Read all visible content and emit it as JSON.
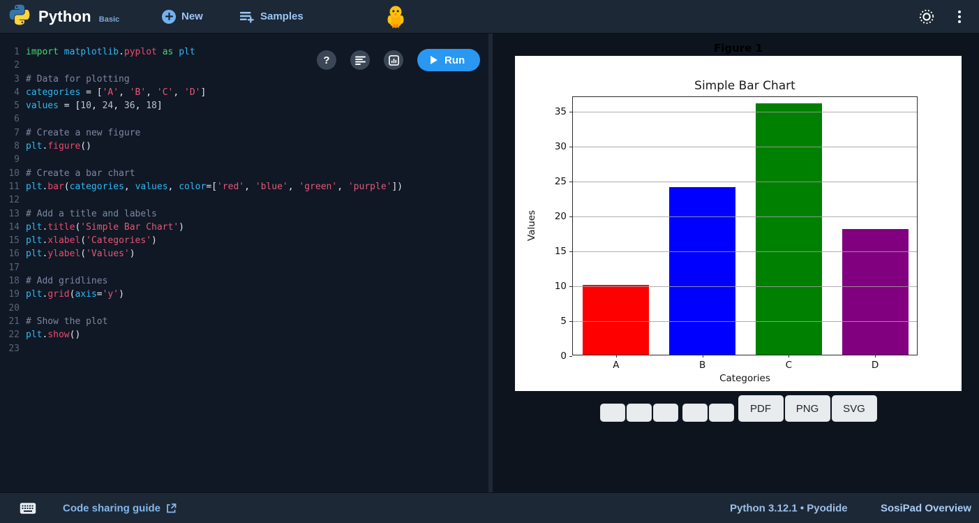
{
  "app": {
    "brand": "Python",
    "brand_variant": "Basic",
    "accent": "#2898f3"
  },
  "topbar": {
    "new_label": "New",
    "samples_label": "Samples",
    "mascot_icon": "chick",
    "theme_icon": "sun",
    "menu_icon": "kebab"
  },
  "editor": {
    "toolbar": {
      "help_label": "?",
      "run_label": "Run"
    },
    "lines": [
      {
        "n": "1",
        "t": [
          [
            "kw",
            "import"
          ],
          [
            "pl",
            " "
          ],
          [
            "id",
            "matplotlib"
          ],
          [
            "pl",
            "."
          ],
          [
            "fn",
            "pyplot"
          ],
          [
            "pl",
            " "
          ],
          [
            "kw",
            "as"
          ],
          [
            "pl",
            " "
          ],
          [
            "id",
            "plt"
          ]
        ]
      },
      {
        "n": "2",
        "t": []
      },
      {
        "n": "3",
        "t": [
          [
            "cmt",
            "# Data for plotting"
          ]
        ]
      },
      {
        "n": "4",
        "t": [
          [
            "id",
            "categories"
          ],
          [
            "pl",
            " = ["
          ],
          [
            "st",
            "'A'"
          ],
          [
            "pl",
            ", "
          ],
          [
            "st",
            "'B'"
          ],
          [
            "pl",
            ", "
          ],
          [
            "st",
            "'C'"
          ],
          [
            "pl",
            ", "
          ],
          [
            "st",
            "'D'"
          ],
          [
            "pl",
            "]"
          ]
        ]
      },
      {
        "n": "5",
        "t": [
          [
            "id",
            "values"
          ],
          [
            "pl",
            " = ["
          ],
          [
            "num",
            "10"
          ],
          [
            "pl",
            ", "
          ],
          [
            "num",
            "24"
          ],
          [
            "pl",
            ", "
          ],
          [
            "num",
            "36"
          ],
          [
            "pl",
            ", "
          ],
          [
            "num",
            "18"
          ],
          [
            "pl",
            "]"
          ]
        ]
      },
      {
        "n": "6",
        "t": []
      },
      {
        "n": "7",
        "t": [
          [
            "cmt",
            "# Create a new figure"
          ]
        ]
      },
      {
        "n": "8",
        "t": [
          [
            "id",
            "plt"
          ],
          [
            "pl",
            "."
          ],
          [
            "fn",
            "figure"
          ],
          [
            "pl",
            "()"
          ]
        ]
      },
      {
        "n": "9",
        "t": []
      },
      {
        "n": "10",
        "t": [
          [
            "cmt",
            "# Create a bar chart"
          ]
        ]
      },
      {
        "n": "11",
        "t": [
          [
            "id",
            "plt"
          ],
          [
            "pl",
            "."
          ],
          [
            "fn",
            "bar"
          ],
          [
            "pl",
            "("
          ],
          [
            "id",
            "categories"
          ],
          [
            "pl",
            ", "
          ],
          [
            "id",
            "values"
          ],
          [
            "pl",
            ", "
          ],
          [
            "id",
            "color"
          ],
          [
            "pl",
            "=["
          ],
          [
            "st",
            "'red'"
          ],
          [
            "pl",
            ", "
          ],
          [
            "st",
            "'blue'"
          ],
          [
            "pl",
            ", "
          ],
          [
            "st",
            "'green'"
          ],
          [
            "pl",
            ", "
          ],
          [
            "st",
            "'purple'"
          ],
          [
            "pl",
            "])"
          ]
        ]
      },
      {
        "n": "12",
        "t": []
      },
      {
        "n": "13",
        "t": [
          [
            "cmt",
            "# Add a title and labels"
          ]
        ]
      },
      {
        "n": "14",
        "t": [
          [
            "id",
            "plt"
          ],
          [
            "pl",
            "."
          ],
          [
            "fn",
            "title"
          ],
          [
            "pl",
            "("
          ],
          [
            "st",
            "'Simple Bar Chart'"
          ],
          [
            "pl",
            ")"
          ]
        ]
      },
      {
        "n": "15",
        "t": [
          [
            "id",
            "plt"
          ],
          [
            "pl",
            "."
          ],
          [
            "fn",
            "xlabel"
          ],
          [
            "pl",
            "("
          ],
          [
            "st",
            "'Categories'"
          ],
          [
            "pl",
            ")"
          ]
        ]
      },
      {
        "n": "16",
        "t": [
          [
            "id",
            "plt"
          ],
          [
            "pl",
            "."
          ],
          [
            "fn",
            "ylabel"
          ],
          [
            "pl",
            "("
          ],
          [
            "st",
            "'Values'"
          ],
          [
            "pl",
            ")"
          ]
        ]
      },
      {
        "n": "17",
        "t": []
      },
      {
        "n": "18",
        "t": [
          [
            "cmt",
            "# Add gridlines"
          ]
        ]
      },
      {
        "n": "19",
        "t": [
          [
            "id",
            "plt"
          ],
          [
            "pl",
            "."
          ],
          [
            "fn",
            "grid"
          ],
          [
            "pl",
            "("
          ],
          [
            "id",
            "axis"
          ],
          [
            "pl",
            "="
          ],
          [
            "st",
            "'y'"
          ],
          [
            "pl",
            ")"
          ]
        ]
      },
      {
        "n": "20",
        "t": []
      },
      {
        "n": "21",
        "t": [
          [
            "cmt",
            "# Show the plot"
          ]
        ]
      },
      {
        "n": "22",
        "t": [
          [
            "id",
            "plt"
          ],
          [
            "pl",
            "."
          ],
          [
            "fn",
            "show"
          ],
          [
            "pl",
            "()"
          ]
        ]
      },
      {
        "n": "23",
        "t": []
      }
    ]
  },
  "chart_data": {
    "type": "bar",
    "window_title": "Figure 1",
    "title": "Simple Bar Chart",
    "xlabel": "Categories",
    "ylabel": "Values",
    "categories": [
      "A",
      "B",
      "C",
      "D"
    ],
    "values": [
      10,
      24,
      36,
      18
    ],
    "bar_colors": [
      "red",
      "blue",
      "green",
      "purple"
    ],
    "bar_colors_hex": [
      "#ff0000",
      "#0000ff",
      "#008000",
      "#800080"
    ],
    "yticks": [
      0,
      5,
      10,
      15,
      20,
      25,
      30,
      35
    ],
    "ylim": [
      0,
      37.1
    ],
    "grid_axis": "y",
    "legend": "none",
    "background": "#ffffff"
  },
  "figure_toolbar": {
    "nav_groups": [
      [
        "",
        "",
        ""
      ],
      [
        "",
        ""
      ]
    ],
    "export_buttons": [
      "PDF",
      "PNG",
      "SVG"
    ]
  },
  "statusbar": {
    "share_label": "Code sharing guide",
    "runtime": "Python 3.12.1 • Pyodide",
    "overview_label": "SosiPad Overview"
  }
}
